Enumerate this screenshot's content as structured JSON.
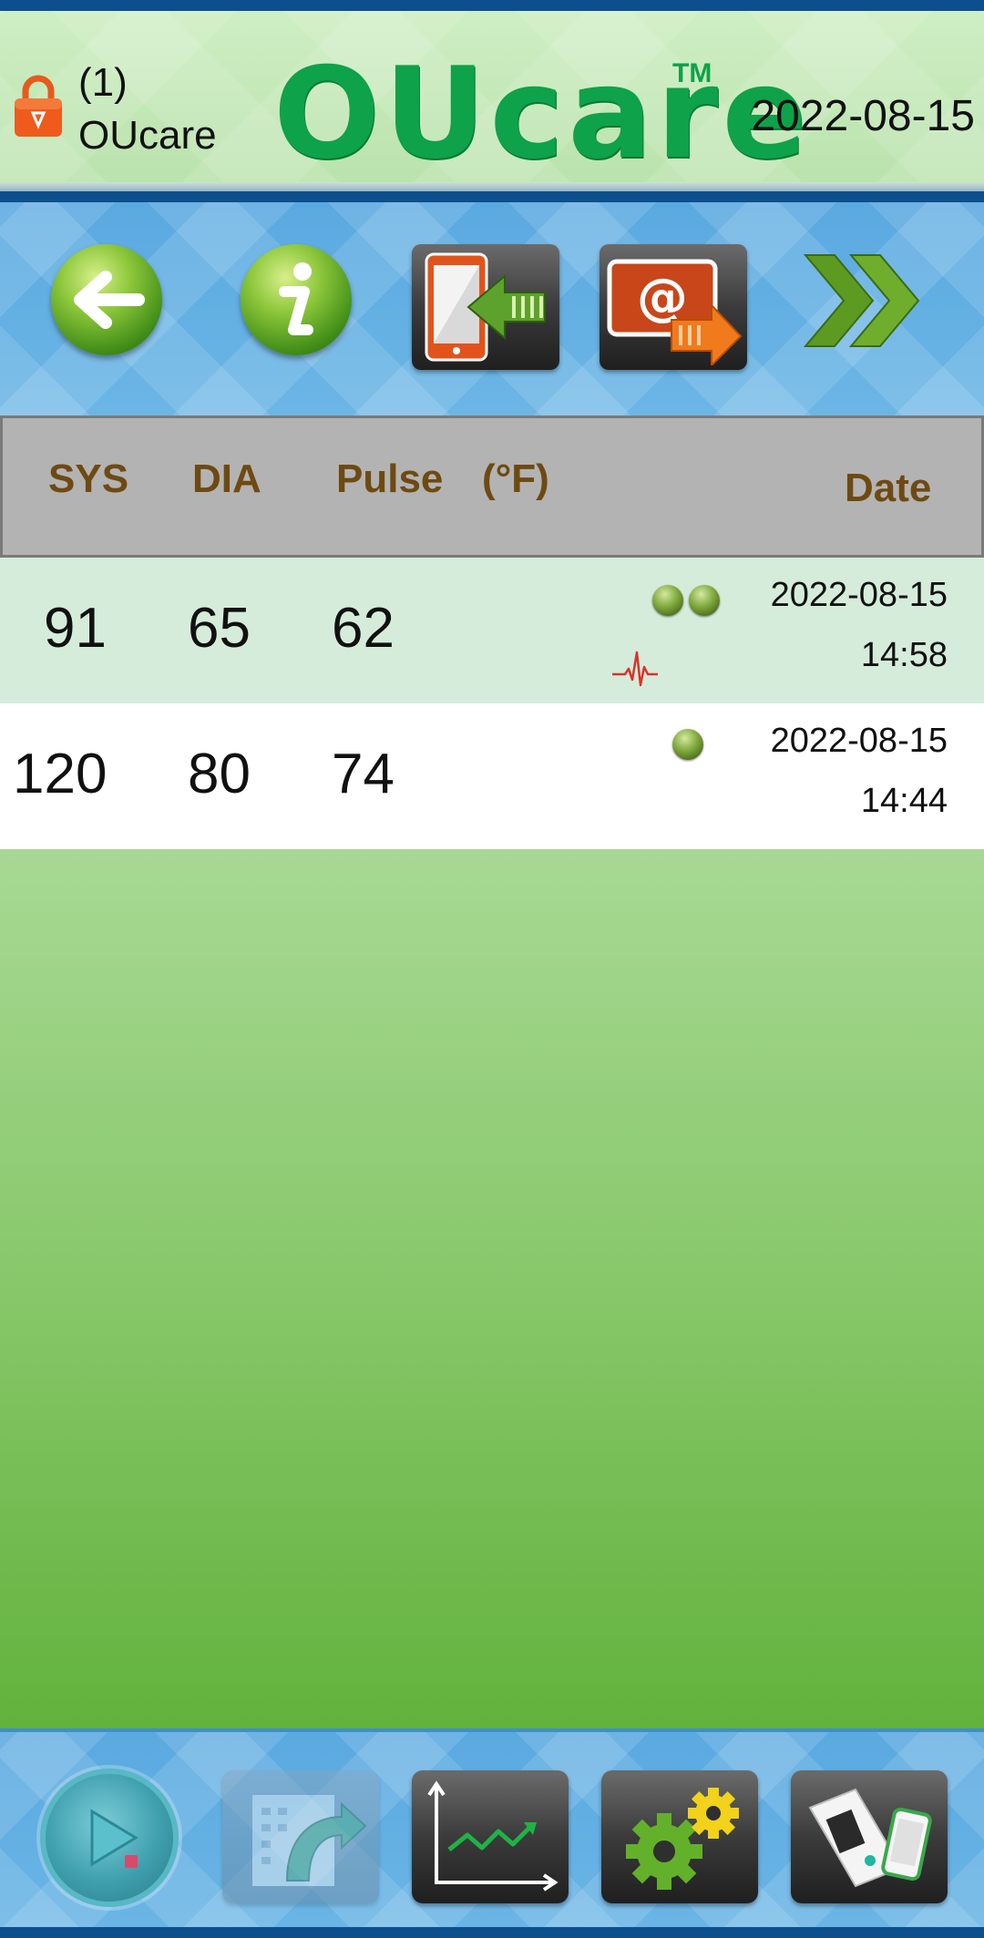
{
  "header": {
    "user_id": "(1)",
    "user_name": "OUcare",
    "logo_text": "OUcare",
    "trademark": "TM",
    "date": "2022-08-15"
  },
  "table": {
    "columns": {
      "sys": "SYS",
      "dia": "DIA",
      "pulse": "Pulse",
      "temp_unit": "(°F)",
      "date": "Date"
    },
    "rows": [
      {
        "sys": "91",
        "dia": "65",
        "pulse": "62",
        "date": "2022-08-15",
        "time": "14:58",
        "indicators": 2,
        "irregular_heartbeat": true
      },
      {
        "sys": "120",
        "dia": "80",
        "pulse": "74",
        "date": "2022-08-15",
        "time": "14:44",
        "indicators": 1,
        "irregular_heartbeat": false
      }
    ]
  },
  "toolbar": {
    "icons": [
      "back-arrow-icon",
      "info-icon",
      "phone-import-icon",
      "email-export-icon",
      "next-double-chevron-icon"
    ]
  },
  "bottombar": {
    "icons": [
      "play-icon",
      "export-share-icon",
      "trend-chart-icon",
      "settings-gears-icon",
      "blood-pressure-monitor-icon"
    ]
  },
  "colors": {
    "logo_green": "#0ea24a",
    "header_label_brown": "#6e4a12",
    "toolbar_blue": "#5aa9e0",
    "frame_navy": "#0d4f8c"
  }
}
